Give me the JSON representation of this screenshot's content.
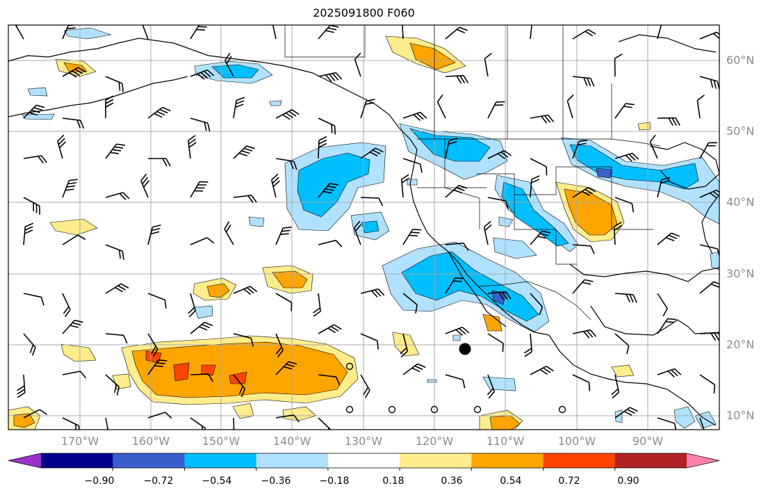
{
  "title": "2025091800 F060",
  "lat_labels": [
    "60°N",
    "50°N",
    "40°N",
    "30°N",
    "20°N",
    "10°N"
  ],
  "lon_labels": [
    "170°W",
    "160°W",
    "150°W",
    "140°W",
    "130°W",
    "120°W",
    "110°W",
    "100°W",
    "90°W"
  ],
  "colorbar": {
    "colors": [
      "#9932cc",
      "#00008b",
      "#3a5fcd",
      "#00bfff",
      "#b0e2ff",
      "#ffffff",
      "#ffec8b",
      "#ffa500",
      "#ff4500",
      "#b22222",
      "#ff82ab"
    ],
    "tick_labels": [
      "−0.90",
      "−0.72",
      "−0.54",
      "−0.36",
      "−0.18",
      "0.18",
      "0.36",
      "0.54",
      "0.72",
      "0.90"
    ]
  },
  "colors": {
    "grid": "#a9a9a9",
    "coast": "#000000",
    "label": "#8a8a8a"
  },
  "markers": {
    "storm_center": "filled black circle"
  }
}
